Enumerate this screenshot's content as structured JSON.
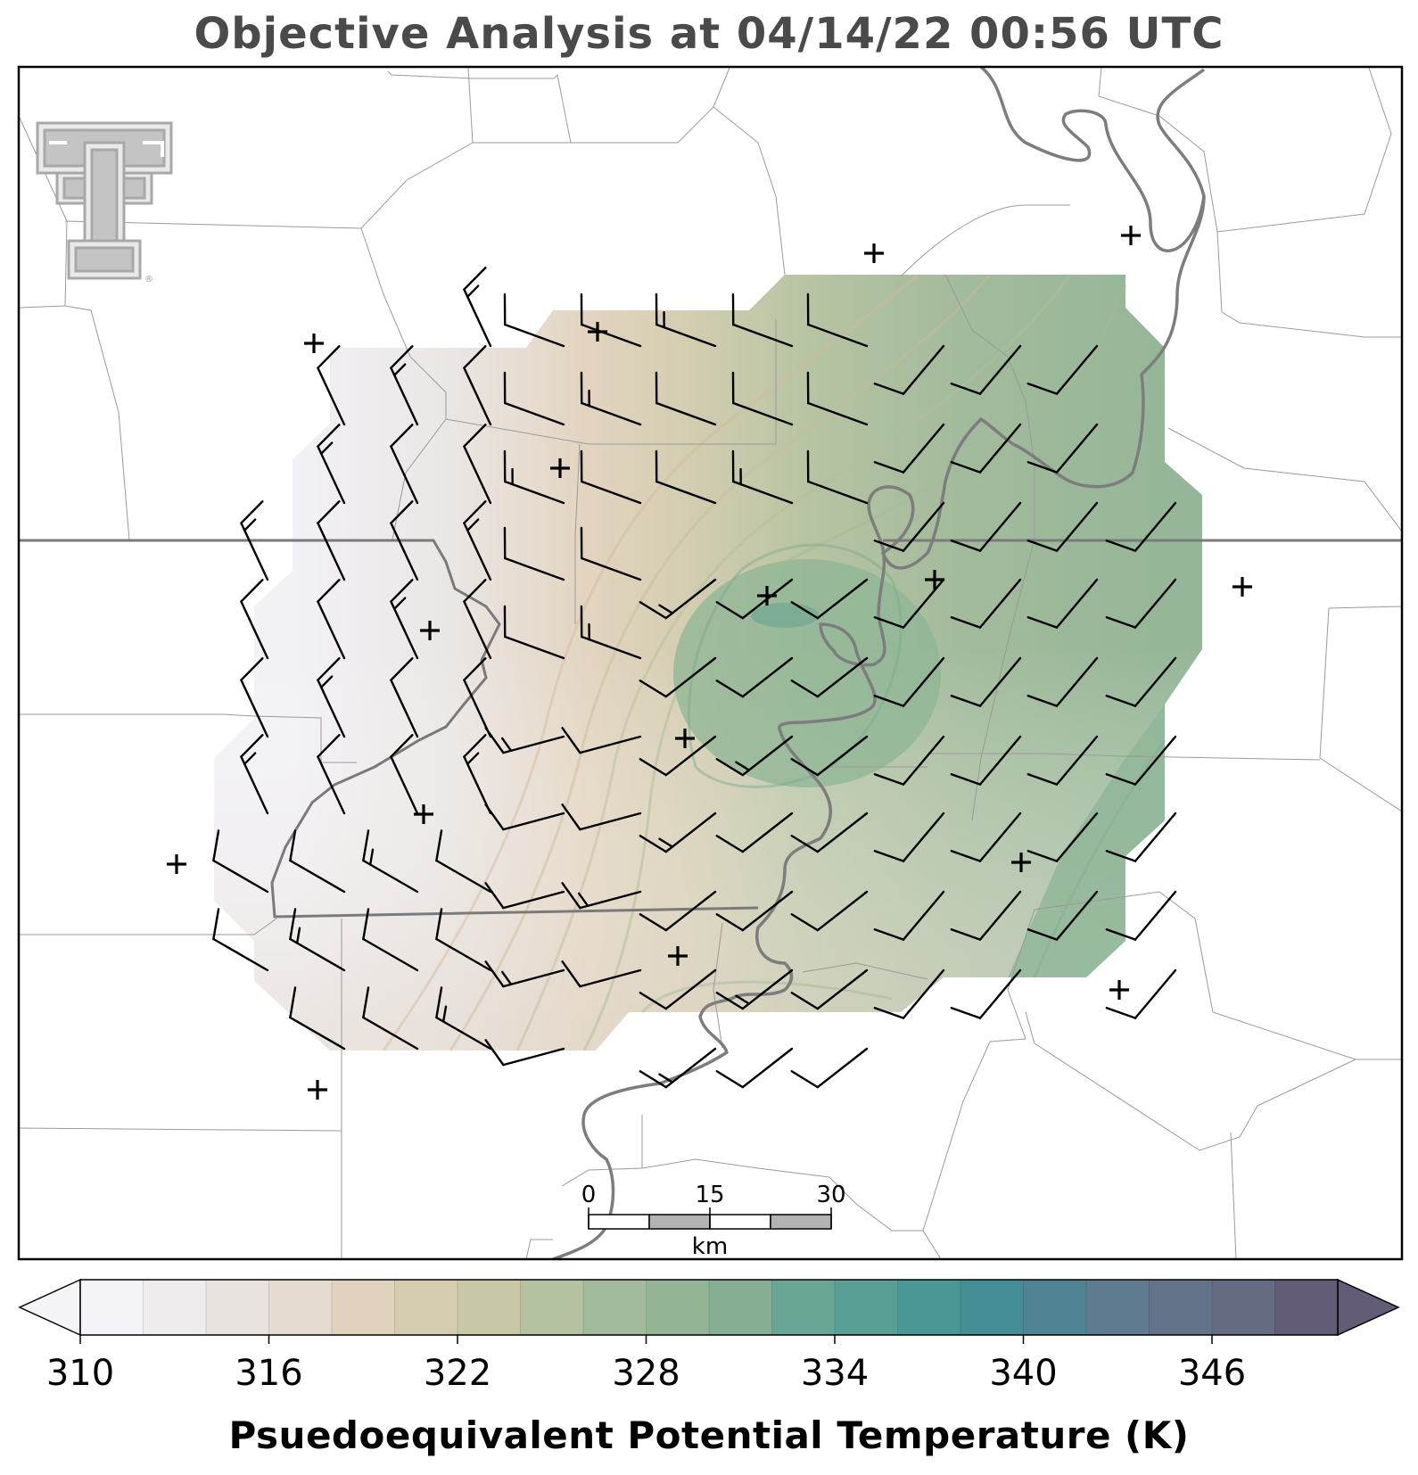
{
  "title": "Objective Analysis at 04/14/22 00:56 UTC",
  "colorbar": {
    "label": "Psuedoequivalent Potential Temperature (K)",
    "min": 310,
    "max": 350,
    "step": 2,
    "tick_values": [
      "310",
      "316",
      "322",
      "328",
      "334",
      "340",
      "346"
    ],
    "colors": [
      "#f4f3f8",
      "#efecee",
      "#e9e3df",
      "#e5dbd0",
      "#e0d2bd",
      "#d6cdb0",
      "#c8c8a6",
      "#b4c2a2",
      "#a2bb9c",
      "#93b596",
      "#85ae93",
      "#68a594",
      "#589f95",
      "#4b9796",
      "#458e95",
      "#4f8494",
      "#5e7b8f",
      "#637389",
      "#646b82",
      "#625c76"
    ]
  },
  "scale_bar": {
    "ticks": [
      "0",
      "15",
      "30"
    ],
    "unit": "km"
  },
  "map": {
    "station_marker": "+",
    "wind_symbol": "wind-barb",
    "logo": "double-t-logo"
  }
}
